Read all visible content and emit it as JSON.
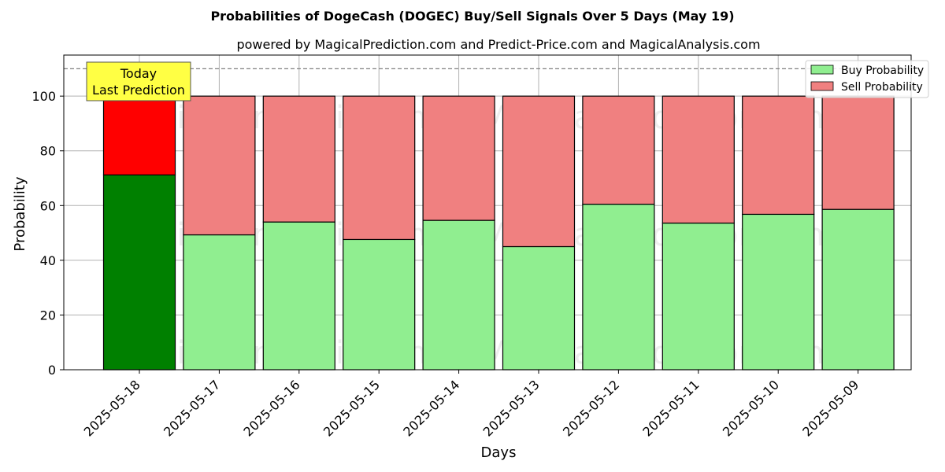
{
  "chart_data": {
    "type": "bar",
    "stacked": true,
    "title": "Probabilities of DogeCash (DOGEC) Buy/Sell Signals Over 5 Days (May 19)",
    "subtitle": "powered by MagicalPrediction.com and Predict-Price.com and MagicalAnalysis.com",
    "xlabel": "Days",
    "ylabel": "Probability",
    "ylim": [
      0,
      115
    ],
    "yticks": [
      0,
      20,
      40,
      60,
      80,
      100
    ],
    "grid": true,
    "legend_position": "top-right",
    "reference_line": 110,
    "categories": [
      "2025-05-18",
      "2025-05-17",
      "2025-05-16",
      "2025-05-15",
      "2025-05-14",
      "2025-05-13",
      "2025-05-12",
      "2025-05-11",
      "2025-05-10",
      "2025-05-09"
    ],
    "series": [
      {
        "name": "Buy Probability",
        "values": [
          71.2,
          49.3,
          54.0,
          47.6,
          54.6,
          45.0,
          60.5,
          53.6,
          56.8,
          58.6
        ],
        "color": "#90ee90",
        "highlight_color": "#008000"
      },
      {
        "name": "Sell Probability",
        "values": [
          28.8,
          50.7,
          46.0,
          52.4,
          45.4,
          55.0,
          39.5,
          46.4,
          43.2,
          41.4
        ],
        "color": "#f08080",
        "highlight_color": "#ff0000"
      }
    ],
    "annotation": {
      "line1": "Today",
      "line2": "Last Prediction",
      "color": "#ffff44"
    },
    "watermarks": [
      "MagicalAnalysis.com",
      "MagicalPrediction.com"
    ]
  }
}
